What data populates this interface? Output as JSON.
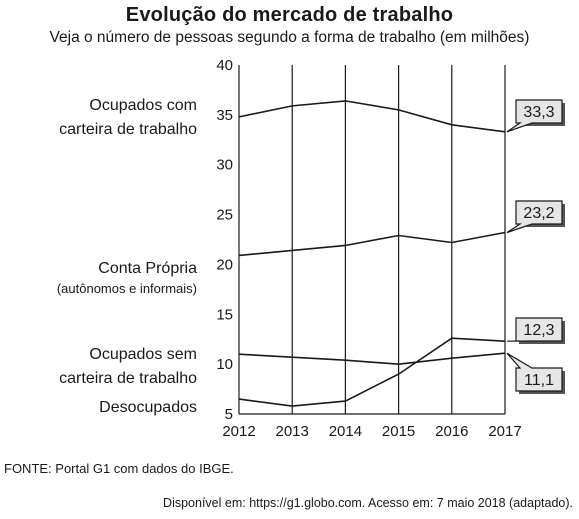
{
  "title": "Evolução do mercado de trabalho",
  "subtitle": "Veja o número de pessoas segundo a forma de trabalho (em milhões)",
  "source": "FONTE: Portal G1 com dados do IBGE.",
  "credit": "Disponível em: https://g1.globo.com. Acesso em: 7 maio 2018 (adaptado).",
  "colors": {
    "line": "#1a1a1a",
    "callout_fill": "#e6e6e6",
    "axis": "#1a1a1a"
  },
  "chart_data": {
    "type": "line",
    "x": [
      "2012",
      "2013",
      "2014",
      "2015",
      "2016",
      "2017"
    ],
    "ylim": [
      5,
      40
    ],
    "yticks": [
      5,
      10,
      15,
      20,
      25,
      30,
      35,
      40
    ],
    "grid": "vertical",
    "series": [
      {
        "name_lines": [
          "Ocupados com",
          "carteira de trabalho"
        ],
        "values": [
          34.8,
          35.9,
          36.4,
          35.5,
          34.0,
          33.3
        ],
        "callout": "33,3"
      },
      {
        "name_lines": [
          "Conta Própria",
          "(autônomos e informais)"
        ],
        "values": [
          20.9,
          21.4,
          21.9,
          22.9,
          22.2,
          23.2
        ],
        "callout": "23,2"
      },
      {
        "name_lines": [
          "Ocupados sem",
          "carteira de trabalho"
        ],
        "values": [
          11.0,
          10.7,
          10.4,
          10.0,
          10.6,
          11.1
        ],
        "callout": "11,1"
      },
      {
        "name_lines": [
          "Desocupados"
        ],
        "values": [
          6.5,
          5.8,
          6.3,
          9.0,
          12.6,
          12.3
        ],
        "callout": "12,3"
      }
    ]
  }
}
